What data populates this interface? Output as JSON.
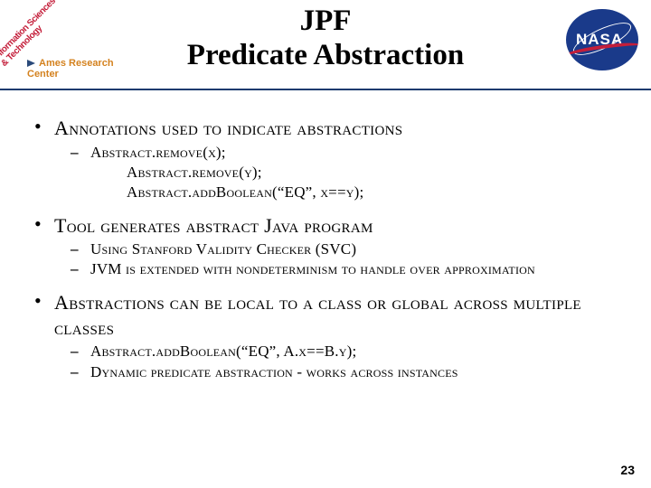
{
  "header": {
    "title_line1": "JPF",
    "title_line2": "Predicate Abstraction",
    "left_logo_text": "Information Sciences & Technology",
    "arc_label": "Ames Research Center",
    "nasa_label": "NASA"
  },
  "bullets": [
    {
      "text": "Annotations used to indicate abstractions",
      "sub": [
        {
          "lines": [
            "Abstract.remove(x);",
            "Abstract.remove(y);",
            "Abstract.addBoolean(“EQ”, x==y);"
          ]
        }
      ]
    },
    {
      "text": "Tool generates abstract Java program",
      "sub": [
        {
          "lines": [
            "Using Stanford Validity Checker (SVC)"
          ]
        },
        {
          "lines": [
            "JVM is extended with nondeterminism to handle over approximation"
          ]
        }
      ]
    },
    {
      "text": "Abstractions can be local to a class or global across multiple classes",
      "sub": [
        {
          "lines": [
            "Abstract.addBoolean(“EQ”, A.x==B.y);"
          ]
        },
        {
          "lines": [
            "Dynamic predicate abstraction - works across instances"
          ]
        }
      ]
    }
  ],
  "page_number": "23",
  "colors": {
    "rule": "#1a3a6e",
    "nasa_bg": "#1a3a8a",
    "nasa_swoosh": "#c41e3a",
    "arc_text": "#d4821f",
    "ist_text": "#c41e3a"
  }
}
